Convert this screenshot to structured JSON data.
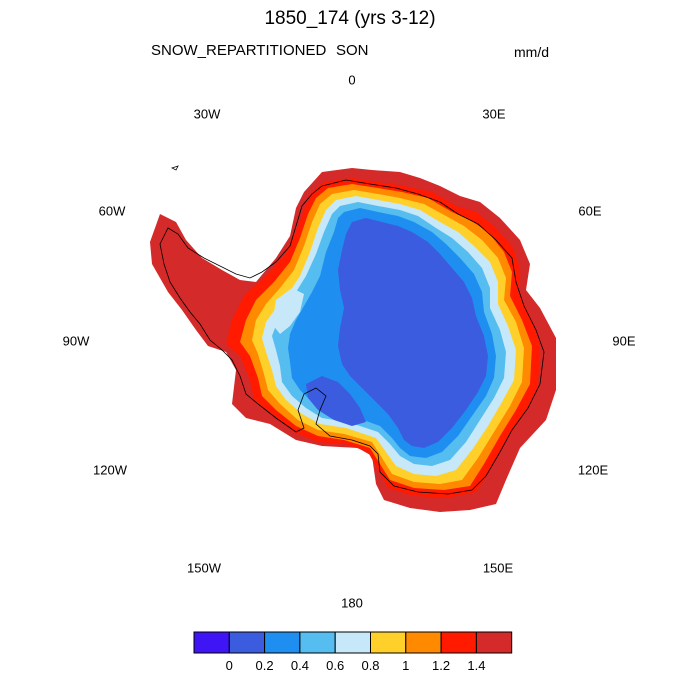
{
  "title": "1850_174 (yrs 3-12)",
  "variable": "SNOW_REPARTITIONED",
  "season": "SON",
  "units": "mm/d",
  "longitude_labels": {
    "lon_0": "0",
    "lon_30e": "30E",
    "lon_60e": "60E",
    "lon_90e": "90E",
    "lon_120e": "120E",
    "lon_150e": "150E",
    "lon_180": "180",
    "lon_150w": "150W",
    "lon_120w": "120W",
    "lon_90w": "90W",
    "lon_60w": "60W",
    "lon_30w": "30W"
  },
  "colorbar": {
    "labels": [
      "0",
      "0.2",
      "0.4",
      "0.6",
      "0.8",
      "1",
      "1.2",
      "1.4"
    ],
    "colors": [
      "#3f15f5",
      "#3c5ce0",
      "#1e8ff0",
      "#55bdf0",
      "#c6e8f8",
      "#ffd02a",
      "#ff8a00",
      "#ff1a00",
      "#d42a2a"
    ]
  },
  "map_colors": {
    "interior": "#3c5ce0",
    "band_04": "#1e8ff0",
    "band_06": "#55bdf0",
    "band_08": "#c6e8f8",
    "band_10": "#ffd02a",
    "band_12": "#ff8a00",
    "band_14": "#ff1a00",
    "edge": "#d42a2a",
    "coast": "#000000"
  }
}
